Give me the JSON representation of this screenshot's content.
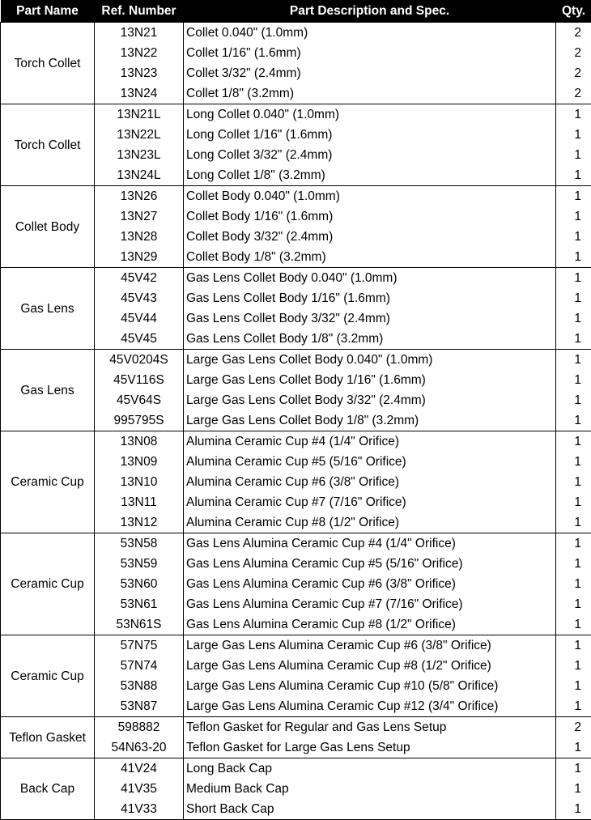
{
  "headers": {
    "part_name": "Part Name",
    "ref_number": "Ref. Number",
    "description": "Part Description and Spec.",
    "qty": "Qty."
  },
  "groups": [
    {
      "name": "Torch Collet",
      "items": [
        [
          "13N21",
          "Collet 0.040\" (1.0mm)",
          "2"
        ],
        [
          "13N22",
          "Collet 1/16\" (1.6mm)",
          "2"
        ],
        [
          "13N23",
          "Collet 3/32\" (2.4mm)",
          "2"
        ],
        [
          "13N24",
          "Collet 1/8\" (3.2mm)",
          "2"
        ]
      ]
    },
    {
      "name": "Torch Collet",
      "items": [
        [
          "13N21L",
          "Long Collet 0.040\" (1.0mm)",
          "1"
        ],
        [
          "13N22L",
          "Long Collet 1/16\" (1.6mm)",
          "1"
        ],
        [
          "13N23L",
          "Long Collet 3/32\" (2.4mm)",
          "1"
        ],
        [
          "13N24L",
          "Long Collet 1/8\" (3.2mm)",
          "1"
        ]
      ]
    },
    {
      "name": "Collet Body",
      "items": [
        [
          "13N26",
          "Collet Body 0.040\" (1.0mm)",
          "1"
        ],
        [
          "13N27",
          "Collet Body 1/16\" (1.6mm)",
          "1"
        ],
        [
          "13N28",
          "Collet Body 3/32\" (2.4mm)",
          "1"
        ],
        [
          "13N29",
          "Collet Body 1/8\" (3.2mm)",
          "1"
        ]
      ]
    },
    {
      "name": "Gas Lens",
      "items": [
        [
          "45V42",
          "Gas Lens Collet Body 0.040\" (1.0mm)",
          "1"
        ],
        [
          "45V43",
          "Gas Lens Collet Body 1/16\" (1.6mm)",
          "1"
        ],
        [
          "45V44",
          "Gas Lens Collet Body 3/32\" (2.4mm)",
          "1"
        ],
        [
          "45V45",
          "Gas Lens Collet Body 1/8\" (3.2mm)",
          "1"
        ]
      ]
    },
    {
      "name": "Gas Lens",
      "items": [
        [
          "45V0204S",
          "Large Gas Lens Collet Body 0.040\" (1.0mm)",
          "1"
        ],
        [
          "45V116S",
          "Large Gas Lens Collet Body 1/16\" (1.6mm)",
          "1"
        ],
        [
          "45V64S",
          "Large Gas Lens Collet Body 3/32\" (2.4mm)",
          "1"
        ],
        [
          "995795S",
          "Large Gas Lens Collet Body 1/8\" (3.2mm)",
          "1"
        ]
      ]
    },
    {
      "name": "Ceramic Cup",
      "items": [
        [
          "13N08",
          "Alumina Ceramic Cup #4 (1/4\" Orifice)",
          "1"
        ],
        [
          "13N09",
          "Alumina Ceramic Cup #5 (5/16\" Orifice)",
          "1"
        ],
        [
          "13N10",
          "Alumina Ceramic Cup #6 (3/8\" Orifice)",
          "1"
        ],
        [
          "13N11",
          "Alumina Ceramic Cup #7 (7/16\" Orifice)",
          "1"
        ],
        [
          "13N12",
          "Alumina Ceramic Cup #8 (1/2\" Orifice)",
          "1"
        ]
      ]
    },
    {
      "name": "Ceramic Cup",
      "items": [
        [
          "53N58",
          "Gas Lens Alumina Ceramic Cup #4 (1/4\" Orifice)",
          "1"
        ],
        [
          "53N59",
          "Gas Lens Alumina Ceramic Cup #5 (5/16\" Orifice)",
          "1"
        ],
        [
          "53N60",
          "Gas Lens Alumina Ceramic Cup #6 (3/8\" Orifice)",
          "1"
        ],
        [
          "53N61",
          "Gas Lens Alumina Ceramic Cup #7 (7/16\" Orifice)",
          "1"
        ],
        [
          "53N61S",
          "Gas Lens Alumina Ceramic Cup #8 (1/2\" Orifice)",
          "1"
        ]
      ]
    },
    {
      "name": "Ceramic Cup",
      "items": [
        [
          "57N75",
          "Large Gas Lens Alumina Ceramic Cup #6 (3/8\" Orifice)",
          "1"
        ],
        [
          "57N74",
          "Large Gas Lens Alumina Ceramic Cup #8 (1/2\" Orifice)",
          "1"
        ],
        [
          "53N88",
          "Large Gas Lens Alumina Ceramic Cup #10 (5/8\" Orifice)",
          "1"
        ],
        [
          "53N87",
          "Large Gas Lens Alumina Ceramic Cup #12 (3/4\" Orifice)",
          "1"
        ]
      ]
    },
    {
      "name": "Teflon Gasket",
      "items": [
        [
          "598882",
          "Teflon Gasket for Regular and Gas Lens Setup",
          "2"
        ],
        [
          "54N63-20",
          "Teflon Gasket for Large Gas Lens Setup",
          "1"
        ]
      ]
    },
    {
      "name": "Back Cap",
      "items": [
        [
          "41V24",
          "Long Back Cap",
          "1"
        ],
        [
          "41V35",
          "Medium Back Cap",
          "1"
        ],
        [
          "41V33",
          "Short Back Cap",
          "1"
        ]
      ]
    }
  ]
}
